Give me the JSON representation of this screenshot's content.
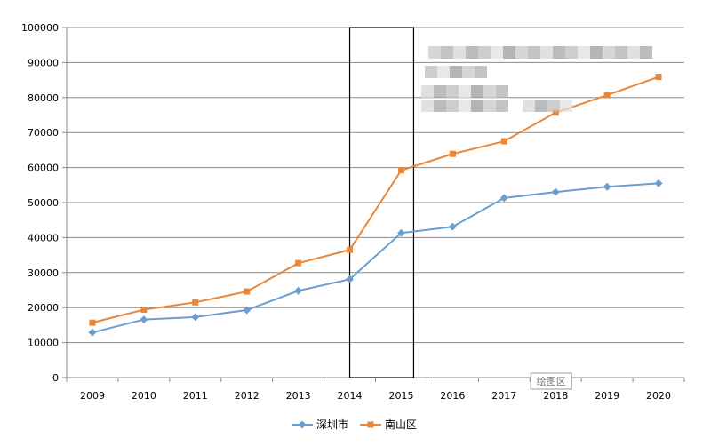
{
  "chart_data": {
    "type": "line",
    "title": "",
    "xlabel": "",
    "ylabel": "",
    "categories": [
      "2009",
      "2010",
      "2011",
      "2012",
      "2013",
      "2014",
      "2015",
      "2016",
      "2017",
      "2018",
      "2019",
      "2020"
    ],
    "ylim": [
      0,
      100000
    ],
    "y_ticks": [
      0,
      10000,
      20000,
      30000,
      40000,
      50000,
      60000,
      70000,
      80000,
      90000,
      100000
    ],
    "y_tick_labels": [
      "0",
      "10000",
      "20000",
      "30000",
      "40000",
      "50000",
      "60000",
      "70000",
      "80000",
      "90000",
      "100000"
    ],
    "grid": "horizontal",
    "legend_position": "bottom",
    "series": [
      {
        "name": "深圳市",
        "color": "#6a9fcd",
        "marker": "diamond",
        "values": [
          12900,
          16600,
          17300,
          19300,
          24800,
          28100,
          41300,
          43100,
          51300,
          53000,
          54500,
          55500
        ]
      },
      {
        "name": "南山区",
        "color": "#e8873a",
        "marker": "square",
        "values": [
          15700,
          19400,
          21500,
          24600,
          32700,
          36500,
          59200,
          63900,
          67500,
          75700,
          80700,
          85900
        ]
      }
    ],
    "highlight": {
      "categories": [
        "2014",
        "2015"
      ]
    },
    "annotations": [
      {
        "text": "绘图区",
        "at_category": "2018"
      }
    ]
  }
}
